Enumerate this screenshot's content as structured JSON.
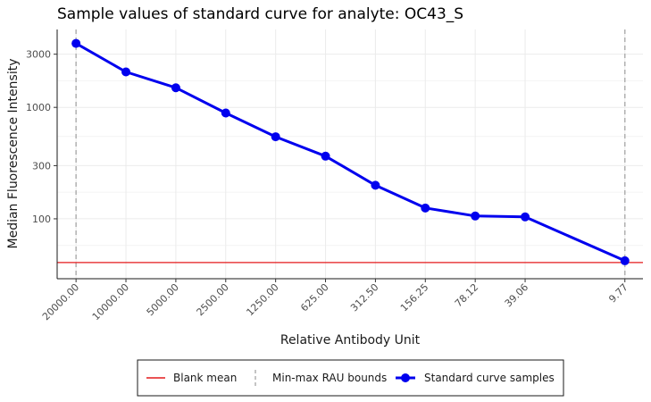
{
  "chart_data": {
    "type": "line",
    "title": "Sample values of standard curve for analyte: OC43_S",
    "xlabel": "Relative Antibody Unit",
    "ylabel": "Median Fluorescence Intensity",
    "y_scale": "log",
    "x_scale": "log-reversed",
    "ylim": [
      29,
      5000
    ],
    "xlim": [
      26000,
      7.6
    ],
    "y_ticks": [
      100,
      300,
      1000,
      3000
    ],
    "grid": true,
    "legend_position": "bottom",
    "series": [
      {
        "name": "Standard curve samples",
        "color": "#0000ee",
        "x": [
          20000.0,
          10000.0,
          5000.0,
          2500.0,
          1250.0,
          625.0,
          312.5,
          156.25,
          78.12,
          39.06,
          9.77
        ],
        "x_labels": [
          "20000.00",
          "10000.00",
          "5000.00",
          "2500.00",
          "1250.00",
          "625.00",
          "312.50",
          "156.25",
          "78.12",
          "39.06",
          "9.77"
        ],
        "y": [
          3750,
          2080,
          1500,
          890,
          545,
          365,
          200,
          125,
          106,
          104,
          42
        ]
      }
    ],
    "blank_mean": {
      "name": "Blank mean",
      "value": 40.5,
      "color": "#e41a1c"
    },
    "rau_bounds": {
      "name": "Min-max RAU bounds",
      "values": [
        20000.0,
        9.77
      ],
      "color": "#b0b0b0"
    }
  }
}
